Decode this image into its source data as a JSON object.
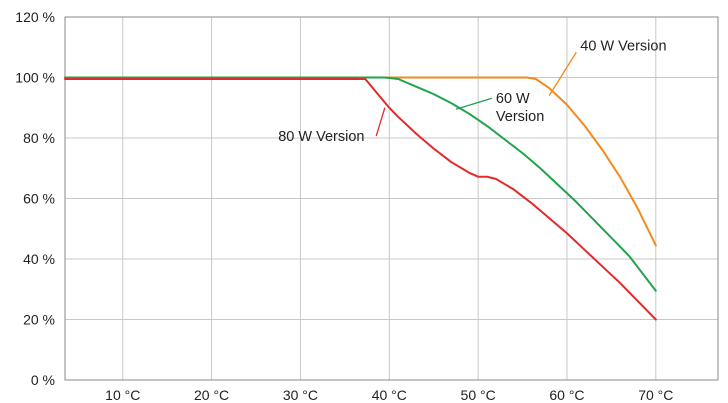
{
  "chart_data": {
    "type": "line",
    "title": "",
    "xlabel": "",
    "ylabel": "",
    "xlim": [
      3.5,
      77
    ],
    "ylim": [
      0,
      120
    ],
    "grid": true,
    "legend": "none",
    "x_ticks": [
      {
        "value": 10,
        "label": "10 °C"
      },
      {
        "value": 20,
        "label": "20 °C"
      },
      {
        "value": 30,
        "label": "30 °C"
      },
      {
        "value": 40,
        "label": "40 °C"
      },
      {
        "value": 50,
        "label": "50 °C"
      },
      {
        "value": 60,
        "label": "60 °C"
      },
      {
        "value": 70,
        "label": "70 °C"
      }
    ],
    "y_ticks": [
      {
        "value": 0,
        "label": "0 %"
      },
      {
        "value": 20,
        "label": "20 %"
      },
      {
        "value": 40,
        "label": "40 %"
      },
      {
        "value": 60,
        "label": "60 %"
      },
      {
        "value": 80,
        "label": "80 %"
      },
      {
        "value": 100,
        "label": "100 %"
      },
      {
        "value": 120,
        "label": "120 %"
      }
    ],
    "series": [
      {
        "name": "40 W Version",
        "color": "#f28a1e",
        "x": [
          3.5,
          55.5,
          56.5,
          58,
          60,
          62,
          64,
          66,
          68,
          70
        ],
        "y": [
          100,
          100,
          99.5,
          96.5,
          91,
          84,
          76,
          67,
          56.5,
          44.5
        ],
        "label_anchor": {
          "x": 58,
          "y": 94
        }
      },
      {
        "name": "60 W Version",
        "color": "#1ea54a",
        "x": [
          3.5,
          39.5,
          41,
          43,
          45,
          47,
          49,
          51,
          53,
          55,
          57,
          59,
          61,
          63,
          65,
          67,
          70
        ],
        "y": [
          100,
          100,
          99.5,
          97,
          94.5,
          91.5,
          88,
          84,
          79.5,
          75,
          70,
          64.5,
          59,
          53,
          47,
          41,
          29.5
        ],
        "label_anchor": {
          "x": 47.5,
          "y": 89.5
        }
      },
      {
        "name": "80 W Version",
        "color": "#e32a2a",
        "x": [
          3.5,
          37.3,
          39,
          40,
          41,
          43,
          45,
          47,
          49,
          50,
          51,
          52,
          54,
          56,
          58,
          60,
          62,
          64,
          66,
          68,
          70
        ],
        "y": [
          99.5,
          99.5,
          93.5,
          90,
          87,
          81.5,
          76.5,
          72,
          68.5,
          67.2,
          67.2,
          66.5,
          63,
          58.5,
          53.5,
          48.5,
          43,
          37.5,
          32,
          26,
          20
        ],
        "label_anchor": {
          "x": 39.5,
          "y": 90
        }
      }
    ],
    "annotations": [
      {
        "text": [
          "40 W Version"
        ],
        "series": "40 W Version",
        "text_x": 61.5,
        "text_y": 109
      },
      {
        "text": [
          "60 W",
          "Version"
        ],
        "series": "60 W Version",
        "text_x": 52,
        "text_y": 91.5
      },
      {
        "text": [
          "80 W Version"
        ],
        "series": "80 W Version",
        "text_x": 27.5,
        "text_y": 79
      }
    ]
  }
}
